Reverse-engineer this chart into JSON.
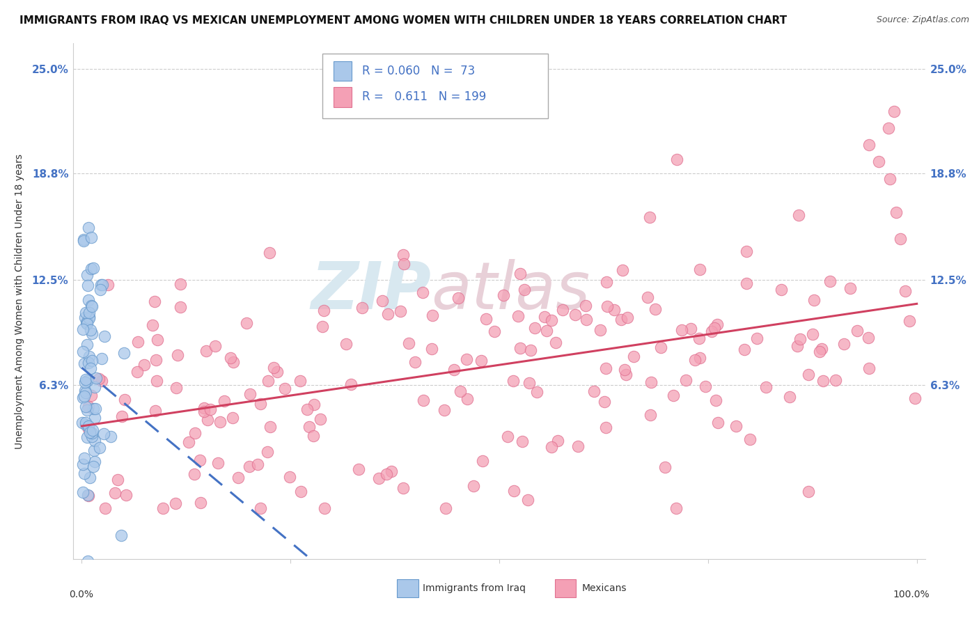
{
  "title": "IMMIGRANTS FROM IRAQ VS MEXICAN UNEMPLOYMENT AMONG WOMEN WITH CHILDREN UNDER 18 YEARS CORRELATION CHART",
  "source": "Source: ZipAtlas.com",
  "ylabel": "Unemployment Among Women with Children Under 18 years",
  "ytick_labels": [
    "6.3%",
    "12.5%",
    "18.8%",
    "25.0%"
  ],
  "ytick_values": [
    0.063,
    0.125,
    0.188,
    0.25
  ],
  "xmin": 0.0,
  "xmax": 1.0,
  "ymin": -0.04,
  "ymax": 0.265,
  "iraq_R": 0.06,
  "iraq_N": 73,
  "mexican_R": 0.611,
  "mexican_N": 199,
  "iraq_color": "#aac8ea",
  "mexican_color": "#f4a0b5",
  "iraq_edge_color": "#6699cc",
  "mexican_edge_color": "#e07090",
  "iraq_line_color": "#4472c4",
  "mexican_line_color": "#d04060",
  "watermark_color": "#d8e8f0",
  "watermark_color2": "#e8d0d8",
  "legend_label_iraq": "Immigrants from Iraq",
  "legend_label_mexican": "Mexicans",
  "background_color": "#ffffff",
  "grid_color": "#cccccc",
  "title_fontsize": 11,
  "tick_label_color": "#4472c4",
  "text_color": "#333333"
}
